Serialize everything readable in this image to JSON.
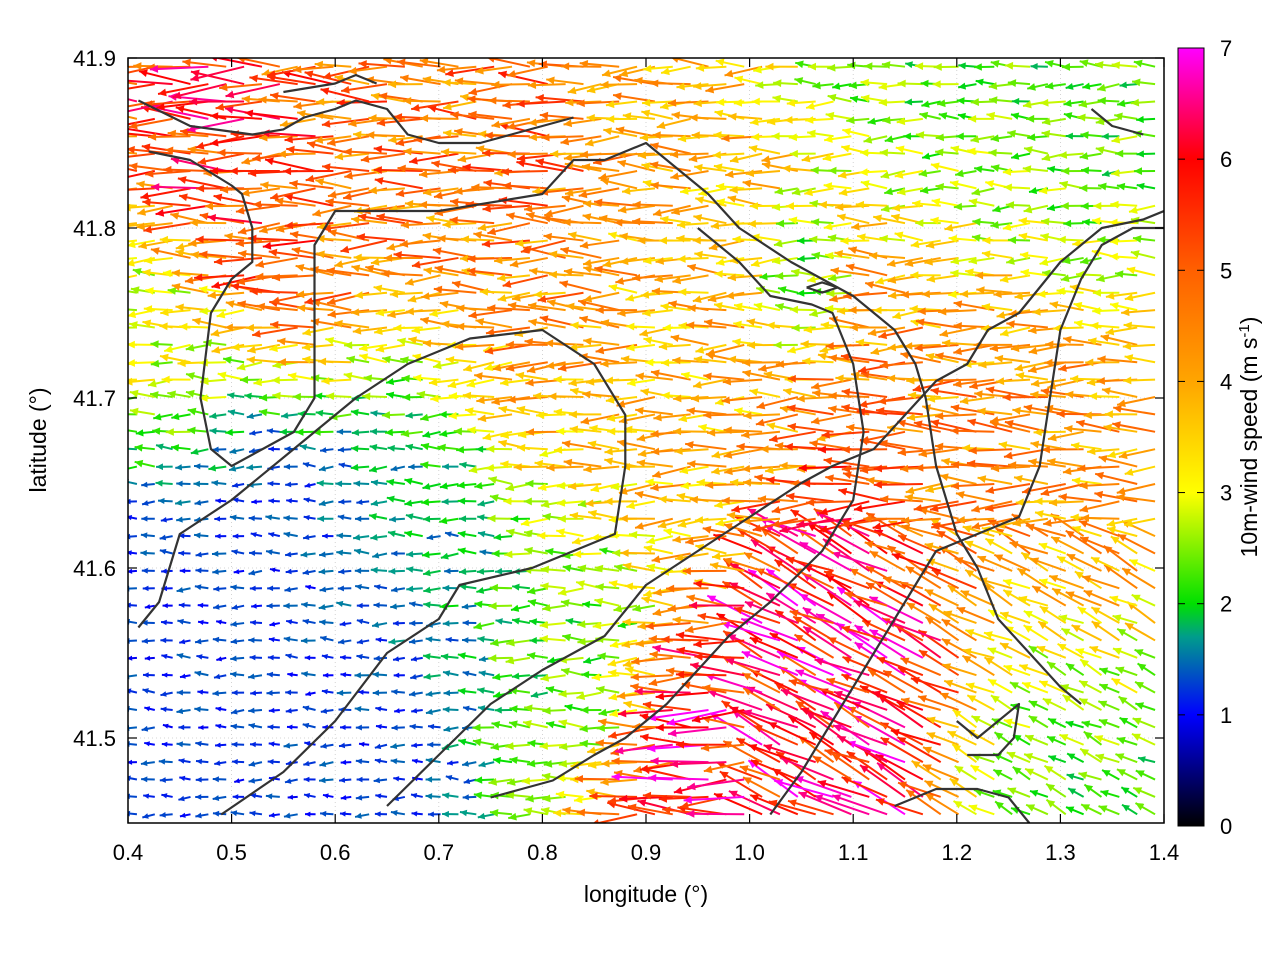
{
  "chart_data": {
    "type": "vector-field",
    "xlabel": "longitude (°)",
    "ylabel": "latitude (°)",
    "colorbar_label_main": "10m-wind speed (m s",
    "colorbar_label_sup": "-1",
    "colorbar_label_end": ")",
    "xlim": [
      0.4,
      1.4
    ],
    "ylim": [
      41.45,
      41.9
    ],
    "x_ticks": [
      0.4,
      0.5,
      0.6,
      0.7,
      0.8,
      0.9,
      1.0,
      1.1,
      1.2,
      1.3,
      1.4
    ],
    "x_tick_labels": [
      "0.4",
      "0.5",
      "0.6",
      "0.7",
      "0.8",
      "0.9",
      "1.0",
      "1.1",
      "1.2",
      "1.3",
      "1.4"
    ],
    "y_ticks": [
      41.5,
      41.6,
      41.7,
      41.8,
      41.9
    ],
    "y_tick_labels": [
      "41.5",
      "41.6",
      "41.7",
      "41.8",
      "41.9"
    ],
    "colorbar_range": [
      0,
      7
    ],
    "colorbar_ticks": [
      0,
      1,
      2,
      3,
      4,
      5,
      6,
      7
    ],
    "colorbar_tick_labels": [
      "0",
      "1",
      "2",
      "3",
      "4",
      "5",
      "6",
      "7"
    ],
    "colormap": [
      {
        "v": 0,
        "color": "#000000"
      },
      {
        "v": 1,
        "color": "#0000ff"
      },
      {
        "v": 1.7,
        "color": "#009c8c"
      },
      {
        "v": 2,
        "color": "#00e000"
      },
      {
        "v": 2.5,
        "color": "#80f000"
      },
      {
        "v": 3,
        "color": "#ffff00"
      },
      {
        "v": 4,
        "color": "#ffa500"
      },
      {
        "v": 5,
        "color": "#ff6000"
      },
      {
        "v": 6,
        "color": "#ff0000"
      },
      {
        "v": 7,
        "color": "#ff00ff"
      }
    ],
    "grid": true,
    "coastline_color": "#333333",
    "coastlines": [
      [
        [
          0.41,
          41.875
        ],
        [
          0.46,
          41.86
        ],
        [
          0.52,
          41.855
        ],
        [
          0.55,
          41.858
        ],
        [
          0.57,
          41.865
        ],
        [
          0.6,
          41.87
        ],
        [
          0.62,
          41.875
        ],
        [
          0.65,
          41.87
        ],
        [
          0.67,
          41.855
        ],
        [
          0.7,
          41.85
        ],
        [
          0.74,
          41.85
        ],
        [
          0.77,
          41.855
        ],
        [
          0.8,
          41.86
        ],
        [
          0.83,
          41.865
        ]
      ],
      [
        [
          0.42,
          41.845
        ],
        [
          0.46,
          41.84
        ],
        [
          0.5,
          41.825
        ],
        [
          0.51,
          41.82
        ],
        [
          0.52,
          41.8
        ],
        [
          0.52,
          41.78
        ],
        [
          0.5,
          41.77
        ],
        [
          0.48,
          41.75
        ],
        [
          0.47,
          41.7
        ],
        [
          0.48,
          41.67
        ],
        [
          0.5,
          41.66
        ],
        [
          0.53,
          41.67
        ],
        [
          0.56,
          41.68
        ],
        [
          0.58,
          41.7
        ],
        [
          0.58,
          41.74
        ],
        [
          0.58,
          41.79
        ],
        [
          0.6,
          41.81
        ],
        [
          0.7,
          41.81
        ],
        [
          0.8,
          41.82
        ],
        [
          0.83,
          41.84
        ],
        [
          0.86,
          41.84
        ],
        [
          0.9,
          41.85
        ],
        [
          0.96,
          41.82
        ],
        [
          0.99,
          41.8
        ],
        [
          1.04,
          41.78
        ],
        [
          1.1,
          41.76
        ],
        [
          1.14,
          41.74
        ],
        [
          1.16,
          41.72
        ],
        [
          1.17,
          41.7
        ],
        [
          1.18,
          41.66
        ],
        [
          1.2,
          41.62
        ],
        [
          1.22,
          41.6
        ],
        [
          1.24,
          41.57
        ],
        [
          1.27,
          41.55
        ],
        [
          1.3,
          41.53
        ],
        [
          1.32,
          41.52
        ]
      ],
      [
        [
          0.41,
          41.565
        ],
        [
          0.43,
          41.58
        ],
        [
          0.45,
          41.62
        ],
        [
          0.5,
          41.64
        ],
        [
          0.56,
          41.67
        ],
        [
          0.62,
          41.7
        ],
        [
          0.67,
          41.72
        ],
        [
          0.73,
          41.735
        ],
        [
          0.8,
          41.74
        ],
        [
          0.85,
          41.72
        ],
        [
          0.88,
          41.69
        ],
        [
          0.88,
          41.66
        ],
        [
          0.87,
          41.62
        ],
        [
          0.83,
          41.61
        ],
        [
          0.79,
          41.6
        ],
        [
          0.72,
          41.59
        ],
        [
          0.7,
          41.57
        ],
        [
          0.65,
          41.55
        ],
        [
          0.6,
          41.51
        ],
        [
          0.55,
          41.48
        ],
        [
          0.49,
          41.455
        ]
      ],
      [
        [
          0.65,
          41.46
        ],
        [
          0.7,
          41.49
        ],
        [
          0.75,
          41.52
        ],
        [
          0.8,
          41.54
        ],
        [
          0.86,
          41.56
        ],
        [
          0.9,
          41.59
        ],
        [
          0.95,
          41.61
        ],
        [
          1.0,
          41.63
        ],
        [
          1.05,
          41.65
        ],
        [
          1.08,
          41.66
        ],
        [
          1.12,
          41.67
        ],
        [
          1.15,
          41.69
        ],
        [
          1.18,
          41.71
        ],
        [
          1.21,
          41.72
        ],
        [
          1.23,
          41.74
        ],
        [
          1.26,
          41.75
        ],
        [
          1.3,
          41.78
        ],
        [
          1.34,
          41.8
        ],
        [
          1.38,
          41.805
        ],
        [
          1.4,
          41.81
        ]
      ],
      [
        [
          0.95,
          41.8
        ],
        [
          0.99,
          41.78
        ],
        [
          1.02,
          41.76
        ],
        [
          1.06,
          41.755
        ],
        [
          1.08,
          41.75
        ],
        [
          1.1,
          41.72
        ],
        [
          1.11,
          41.68
        ],
        [
          1.1,
          41.64
        ],
        [
          1.07,
          41.61
        ],
        [
          1.02,
          41.58
        ],
        [
          0.98,
          41.56
        ],
        [
          0.95,
          41.54
        ],
        [
          0.92,
          41.52
        ],
        [
          0.88,
          41.5
        ],
        [
          0.85,
          41.49
        ],
        [
          0.81,
          41.475
        ],
        [
          0.78,
          41.47
        ],
        [
          0.75,
          41.465
        ]
      ],
      [
        [
          1.02,
          41.455
        ],
        [
          1.05,
          41.48
        ],
        [
          1.09,
          41.52
        ],
        [
          1.12,
          41.55
        ],
        [
          1.15,
          41.58
        ],
        [
          1.18,
          41.61
        ],
        [
          1.22,
          41.62
        ],
        [
          1.26,
          41.63
        ],
        [
          1.28,
          41.66
        ],
        [
          1.29,
          41.7
        ],
        [
          1.3,
          41.74
        ],
        [
          1.32,
          41.77
        ],
        [
          1.34,
          41.79
        ],
        [
          1.37,
          41.8
        ],
        [
          1.4,
          41.8
        ]
      ],
      [
        [
          1.14,
          41.46
        ],
        [
          1.18,
          41.47
        ],
        [
          1.22,
          41.47
        ],
        [
          1.25,
          41.465
        ],
        [
          1.27,
          41.45
        ]
      ],
      [
        [
          1.2,
          41.51
        ],
        [
          1.22,
          41.5
        ],
        [
          1.24,
          41.51
        ],
        [
          1.26,
          41.52
        ],
        [
          1.255,
          41.5
        ],
        [
          1.24,
          41.49
        ],
        [
          1.21,
          41.49
        ]
      ],
      [
        [
          1.055,
          41.765
        ],
        [
          1.07,
          41.762
        ],
        [
          1.085,
          41.765
        ],
        [
          1.07,
          41.768
        ],
        [
          1.055,
          41.765
        ]
      ],
      [
        [
          0.55,
          41.88
        ],
        [
          0.6,
          41.885
        ],
        [
          0.62,
          41.89
        ],
        [
          0.64,
          41.885
        ]
      ],
      [
        [
          1.33,
          41.87
        ],
        [
          1.35,
          41.86
        ],
        [
          1.38,
          41.855
        ]
      ]
    ],
    "wind_regimes": [
      {
        "x": 0.5,
        "y": 41.55,
        "r": 0.12,
        "speed": 1.2
      },
      {
        "x": 0.7,
        "y": 41.66,
        "r": 0.08,
        "speed": 1.6
      },
      {
        "x": 0.55,
        "y": 41.84,
        "r": 0.07,
        "speed": 5.6
      },
      {
        "x": 0.62,
        "y": 41.82,
        "r": 0.08,
        "speed": 4.6
      },
      {
        "x": 0.78,
        "y": 41.78,
        "r": 0.09,
        "speed": 4.8
      },
      {
        "x": 0.92,
        "y": 41.72,
        "r": 0.1,
        "speed": 3.8
      },
      {
        "x": 1.2,
        "y": 41.68,
        "r": 0.1,
        "speed": 4.5
      },
      {
        "x": 1.12,
        "y": 41.55,
        "r": 0.08,
        "speed": 6.3
      },
      {
        "x": 0.98,
        "y": 41.48,
        "r": 0.06,
        "speed": 5.8
      },
      {
        "x": 1.3,
        "y": 41.62,
        "r": 0.08,
        "speed": 4.2
      },
      {
        "x": 1.3,
        "y": 41.5,
        "r": 0.08,
        "speed": 2.2
      },
      {
        "x": 1.25,
        "y": 41.88,
        "r": 0.1,
        "speed": 2.3
      },
      {
        "x": 0.45,
        "y": 41.72,
        "r": 0.05,
        "speed": 3.0
      },
      {
        "x": 0.84,
        "y": 41.58,
        "r": 0.06,
        "speed": 2.3
      },
      {
        "x": 1.06,
        "y": 41.77,
        "r": 0.03,
        "speed": 2.0
      }
    ]
  }
}
